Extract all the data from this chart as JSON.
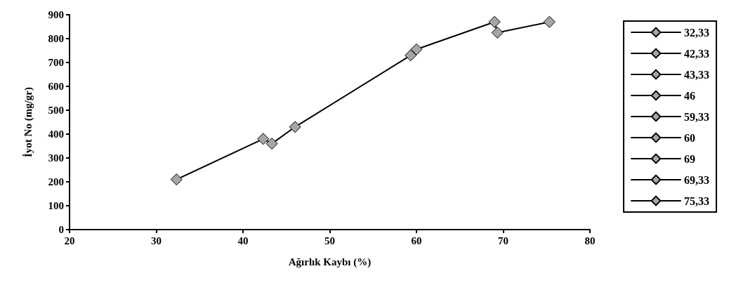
{
  "chart_data": {
    "type": "line",
    "xlabel": "Ağırlık Kaybı (%)",
    "ylabel": "İyot No (mg/gr)",
    "xlim": [
      20,
      80
    ],
    "xticks": [
      20,
      30,
      40,
      50,
      60,
      70,
      80
    ],
    "ylim": [
      0,
      900
    ],
    "yticks": [
      0,
      100,
      200,
      300,
      400,
      500,
      600,
      700,
      800,
      900
    ],
    "grid": false,
    "legend": "right",
    "marker": "diamond",
    "line_style": "solid",
    "series": [
      {
        "color": "#000000",
        "marker": "none",
        "x": [
          32.33,
          42.33,
          43.33,
          46,
          59.33,
          60,
          69,
          69.33,
          75.33
        ],
        "values": [
          210,
          380,
          360,
          430,
          730,
          755,
          870,
          825,
          870
        ]
      },
      {
        "name": "32,33",
        "color": "#a6a6a6",
        "x": [
          32.33
        ],
        "values": [
          210
        ]
      },
      {
        "name": "42,33",
        "color": "#a6a6a6",
        "x": [
          42.33
        ],
        "values": [
          380
        ]
      },
      {
        "name": "43,33",
        "color": "#a6a6a6",
        "x": [
          43.33
        ],
        "values": [
          360
        ]
      },
      {
        "name": "46",
        "color": "#a6a6a6",
        "x": [
          46
        ],
        "values": [
          430
        ]
      },
      {
        "name": "59,33",
        "color": "#a6a6a6",
        "x": [
          59.33
        ],
        "values": [
          730
        ]
      },
      {
        "name": "60",
        "color": "#a6a6a6",
        "x": [
          60
        ],
        "values": [
          755
        ]
      },
      {
        "name": "69",
        "color": "#a6a6a6",
        "x": [
          69
        ],
        "values": [
          870
        ]
      },
      {
        "name": "69,33",
        "color": "#a6a6a6",
        "x": [
          69.33
        ],
        "values": [
          825
        ]
      },
      {
        "name": "75,33",
        "color": "#a6a6a6",
        "x": [
          75.33
        ],
        "values": [
          870
        ]
      }
    ]
  }
}
